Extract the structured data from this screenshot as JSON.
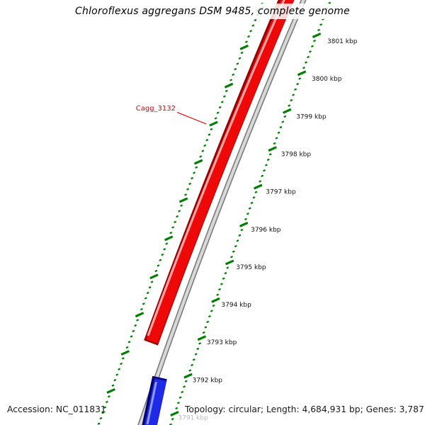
{
  "title": "Chloroflexus aggregans DSM 9485, complete genome",
  "map": {
    "features": [
      {
        "label": "Cagg_3132",
        "color": "#ee0808"
      },
      {
        "label": "",
        "color": "#1f2ae6"
      }
    ],
    "backbone_color": "#d8d8d8",
    "ruler": {
      "tick_color": "#008000",
      "unit": "kbp",
      "labels": [
        "3801 kbp",
        "3800 kbp",
        "3799 kbp",
        "3798 kbp",
        "3797 kbp",
        "3796 kbp",
        "3795 kbp",
        "3794 kbp",
        "3793 kbp",
        "3792 kbp",
        "3791 kbp"
      ],
      "faded_label_index": 10,
      "label_color": "#111111",
      "faded_label_color": "#b9b9b9"
    }
  },
  "footer": {
    "accession": "Accession: NC_011831",
    "topology": "Topology: circular; Length: 4,684,931 bp; Genes: 3,787"
  }
}
